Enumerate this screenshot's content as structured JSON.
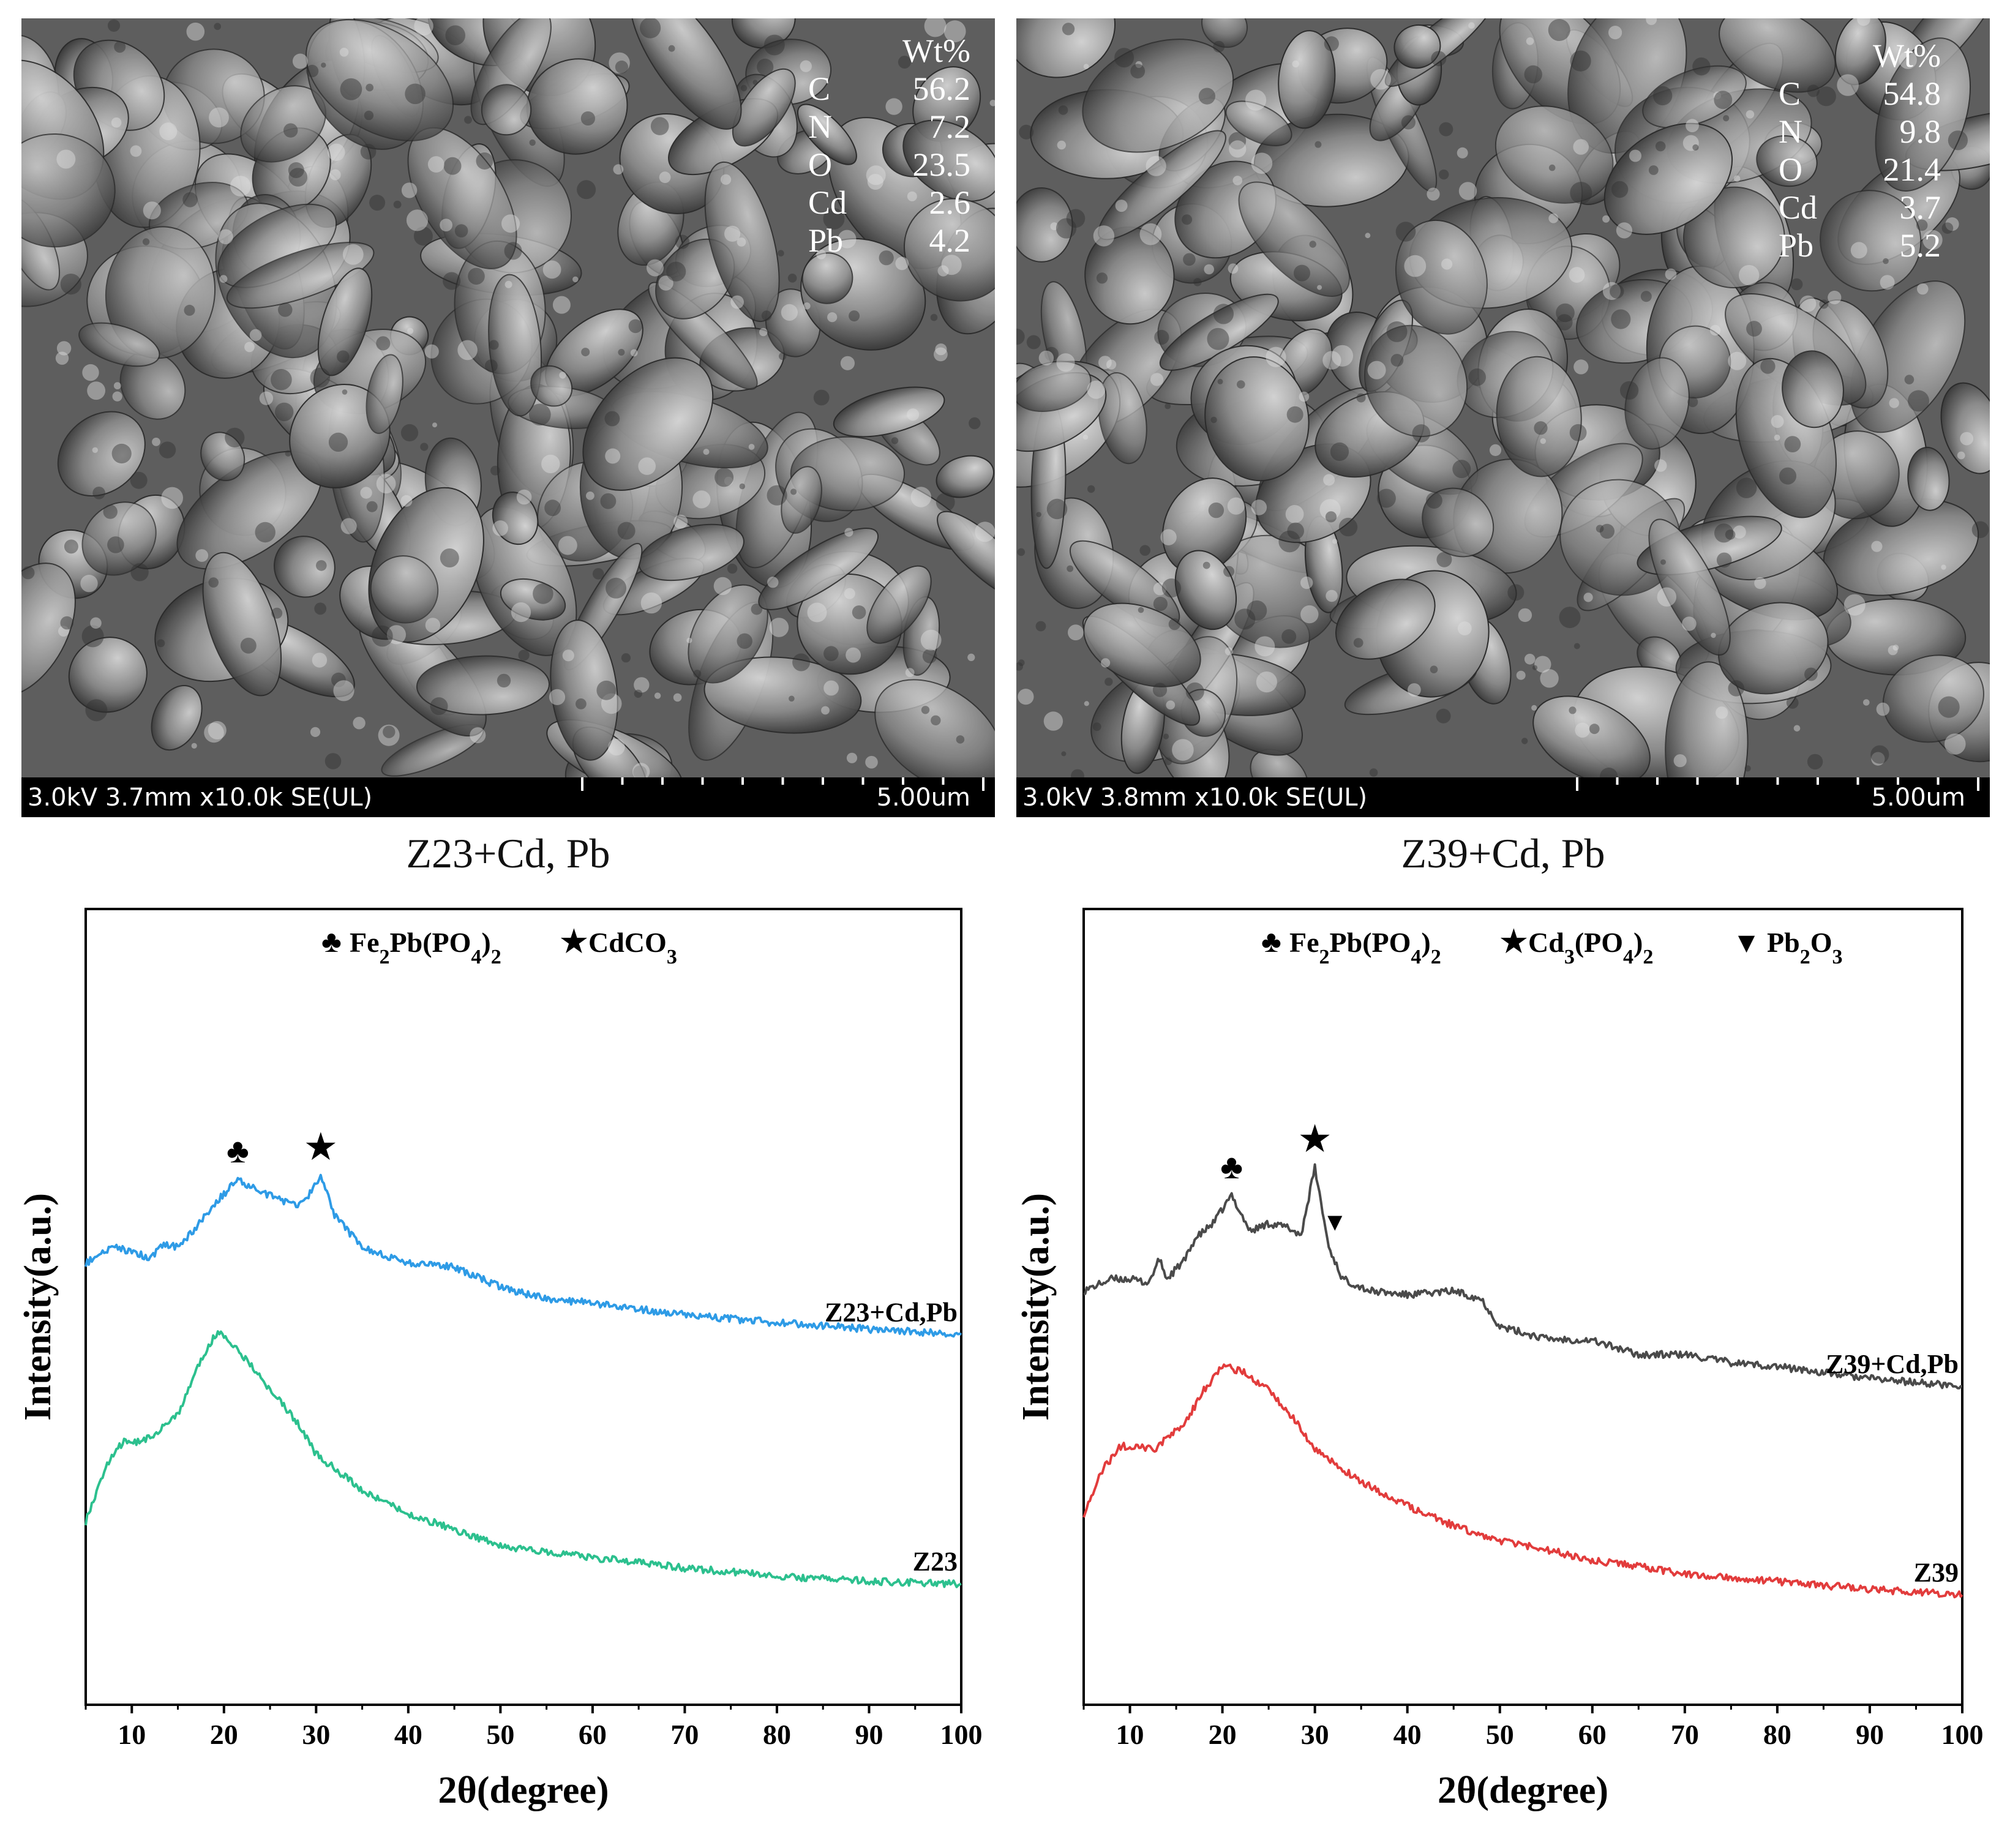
{
  "sem_panels": [
    {
      "id": "left",
      "info_bar": "3.0kV 3.7mm x10.0k SE(UL)",
      "scale_label": "5.00um",
      "eds_header": "Wt%",
      "eds": [
        {
          "element": "C",
          "value": "56.2"
        },
        {
          "element": "N",
          "value": "7.2"
        },
        {
          "element": "O",
          "value": "23.5"
        },
        {
          "element": "Cd",
          "value": "2.6"
        },
        {
          "element": "Pb",
          "value": "4.2"
        }
      ],
      "caption": "Z23+Cd, Pb"
    },
    {
      "id": "right",
      "info_bar": "3.0kV 3.8mm x10.0k SE(UL)",
      "scale_label": "5.00um",
      "eds_header": "Wt%",
      "eds": [
        {
          "element": "C",
          "value": "54.8"
        },
        {
          "element": "N",
          "value": "9.8"
        },
        {
          "element": "O",
          "value": "21.4"
        },
        {
          "element": "Cd",
          "value": "3.7"
        },
        {
          "element": "Pb",
          "value": "5.2"
        }
      ],
      "caption": "Z39+Cd, Pb"
    }
  ],
  "chart_data": [
    {
      "type": "line",
      "xlabel": "2θ(degree)",
      "ylabel": "Intensity(a.u.)",
      "xlim": [
        5,
        100
      ],
      "ylim": [
        0,
        10
      ],
      "xticks": [
        10,
        20,
        30,
        40,
        50,
        60,
        70,
        80,
        90,
        100
      ],
      "grid": false,
      "legend": [
        {
          "symbol": "♣",
          "label": "Fe2Pb(PO4)2"
        },
        {
          "symbol": "★",
          "label": "CdCO3"
        }
      ],
      "series": [
        {
          "name": "Z23+Cd,Pb",
          "color": "#2e9be6",
          "x": [
            5,
            8,
            10,
            12,
            13.3,
            15,
            17,
            19,
            21.5,
            24,
            26,
            28,
            29.5,
            30.5,
            32,
            35,
            40,
            45,
            50,
            55,
            60,
            70,
            80,
            90,
            100
          ],
          "y": [
            5.55,
            5.75,
            5.7,
            5.6,
            5.78,
            5.75,
            6.0,
            6.3,
            6.6,
            6.45,
            6.35,
            6.25,
            6.45,
            6.65,
            6.15,
            5.75,
            5.55,
            5.5,
            5.25,
            5.1,
            5.05,
            4.9,
            4.8,
            4.72,
            4.65
          ]
        },
        {
          "name": "Z23",
          "color": "#2cc08e",
          "x": [
            5,
            7,
            9,
            11,
            13,
            15,
            17,
            19,
            20,
            22,
            25,
            28,
            30,
            35,
            40,
            45,
            50,
            55,
            60,
            70,
            80,
            90,
            100
          ],
          "y": [
            2.3,
            2.95,
            3.3,
            3.3,
            3.45,
            3.65,
            4.2,
            4.65,
            4.65,
            4.4,
            3.95,
            3.55,
            3.15,
            2.7,
            2.4,
            2.2,
            2.0,
            1.92,
            1.85,
            1.72,
            1.62,
            1.55,
            1.52
          ]
        }
      ],
      "annotations": [
        {
          "symbol": "♣",
          "x": 21.5
        },
        {
          "symbol": "★",
          "x": 30.5
        }
      ]
    },
    {
      "type": "line",
      "xlabel": "2θ(degree)",
      "ylabel": "Intensity(a.u.)",
      "xlim": [
        5,
        100
      ],
      "ylim": [
        0,
        10
      ],
      "xticks": [
        10,
        20,
        30,
        40,
        50,
        60,
        70,
        80,
        90,
        100
      ],
      "grid": false,
      "legend": [
        {
          "symbol": "♣",
          "label": "Fe2Pb(PO4)2"
        },
        {
          "symbol": "★",
          "label": "Cd3(PO4)2"
        },
        {
          "symbol": "▾",
          "label": "Pb2O3"
        }
      ],
      "series": [
        {
          "name": "Z39+Cd,Pb",
          "color": "#4a4a4a",
          "x": [
            5,
            8,
            10,
            12,
            13.2,
            14,
            16,
            17,
            19,
            21,
            23,
            25,
            27,
            28.5,
            30,
            31.5,
            33,
            36,
            40,
            45,
            48,
            50,
            55,
            60,
            65,
            70,
            75,
            80,
            90,
            100
          ],
          "y": [
            5.2,
            5.35,
            5.35,
            5.3,
            5.6,
            5.35,
            5.6,
            5.85,
            6.05,
            6.4,
            5.95,
            6.05,
            6.0,
            5.9,
            6.75,
            5.75,
            5.35,
            5.2,
            5.15,
            5.2,
            5.1,
            4.75,
            4.6,
            4.58,
            4.4,
            4.4,
            4.3,
            4.25,
            4.1,
            4.0
          ]
        },
        {
          "name": "Z39",
          "color": "#e23c3c",
          "x": [
            5,
            7,
            9,
            11,
            12.5,
            14,
            16,
            18,
            20,
            22,
            25,
            28,
            30,
            35,
            40,
            45,
            50,
            55,
            60,
            70,
            80,
            90,
            100
          ],
          "y": [
            2.4,
            2.95,
            3.25,
            3.25,
            3.2,
            3.35,
            3.55,
            3.95,
            4.25,
            4.2,
            3.95,
            3.55,
            3.2,
            2.8,
            2.5,
            2.25,
            2.05,
            1.95,
            1.82,
            1.65,
            1.55,
            1.45,
            1.38
          ]
        }
      ],
      "annotations": [
        {
          "symbol": "♣",
          "x": 21
        },
        {
          "symbol": "★",
          "x": 30
        },
        {
          "symbol": "▾",
          "x": 31.5
        }
      ]
    }
  ]
}
